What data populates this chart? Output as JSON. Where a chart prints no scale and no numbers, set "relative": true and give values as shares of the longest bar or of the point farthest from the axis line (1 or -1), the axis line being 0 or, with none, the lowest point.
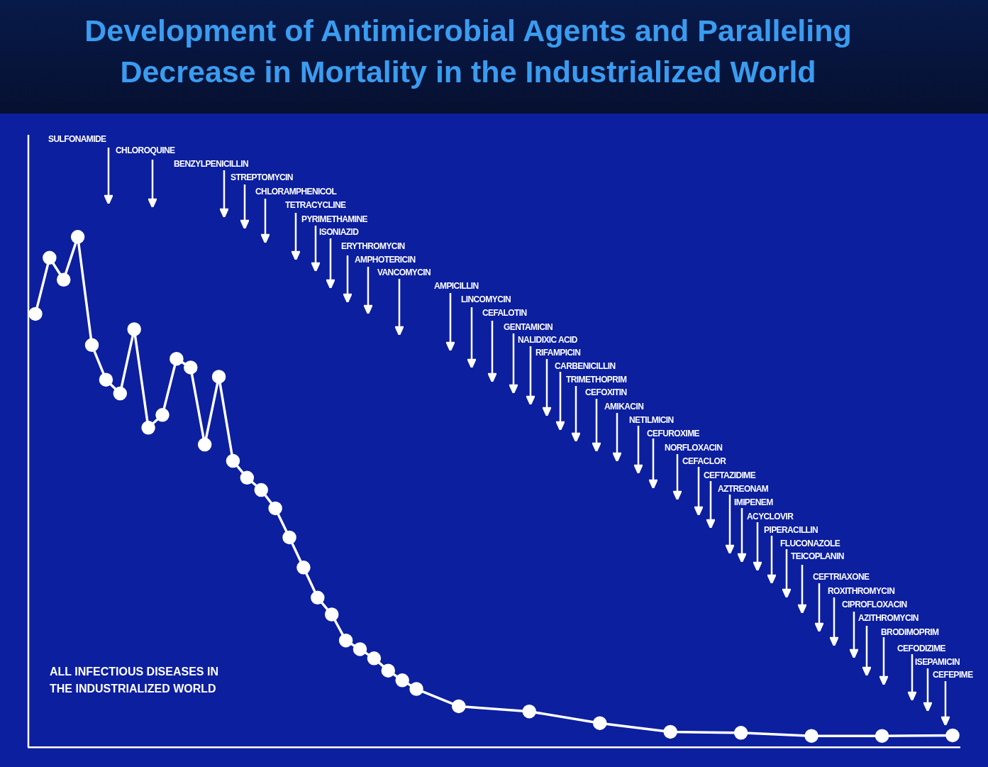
{
  "chart_data": {
    "type": "line",
    "title": "Development of Antimicrobial Agents and Paralleling Decrease in Mortality in the Industrialized World",
    "relative": true,
    "tick_labels": false,
    "grid": false,
    "legend": false,
    "marker": "circle",
    "line_style": "solid",
    "categories": [
      null,
      null,
      null,
      null,
      null,
      null,
      null,
      null,
      null,
      null,
      null,
      null,
      null,
      null,
      null,
      null,
      null,
      null,
      null,
      null,
      null,
      null,
      null,
      null,
      null,
      null,
      null,
      null,
      null,
      null,
      null,
      null,
      null,
      null,
      null,
      null,
      null,
      null,
      null,
      null,
      null,
      null,
      null,
      null,
      null,
      null,
      null,
      null,
      null,
      null,
      null,
      null,
      null,
      null,
      null,
      null,
      null,
      null,
      null,
      null,
      null,
      null,
      null,
      null,
      null,
      null
    ],
    "series": [
      {
        "name": "ALL INFECTIOUS DISEASES IN THE INDUSTRIALIZED WORLD",
        "color": "#ffffff",
        "values": [
          0.849,
          0.959,
          0.916,
          1.0,
          0.788,
          0.72,
          0.693,
          0.819,
          0.626,
          0.651,
          0.761,
          0.744,
          0.593,
          0.726,
          0.561,
          0.528,
          0.504,
          0.468,
          0.411,
          0.352,
          0.293,
          0.26,
          0.209,
          0.192,
          0.174,
          0.15,
          0.131,
          0.114,
          null,
          null,
          0.08,
          null,
          null,
          null,
          null,
          0.07,
          null,
          null,
          null,
          null,
          0.047,
          null,
          null,
          null,
          null,
          0.03,
          null,
          null,
          null,
          null,
          0.028,
          null,
          null,
          null,
          null,
          0.022,
          null,
          null,
          null,
          null,
          0.022,
          null,
          null,
          null,
          null,
          0.023
        ]
      }
    ],
    "annotations": [
      "SULFONAMIDE",
      "CHLOROQUINE",
      "BENZYLPENICILLIN",
      "STREPTOMYCIN",
      "CHLORAMPHENICOL",
      "TETRACYCLINE",
      "PYRIMETHAMINE",
      "ISONIAZID",
      "ERYTHROMYCIN",
      "AMPHOTERICIN",
      "VANCOMYCIN",
      "AMPICILLIN",
      "LINCOMYCIN",
      "CEFALOTIN",
      "GENTAMICIN",
      "NALIDIXIC ACID",
      "RIFAMPICIN",
      "CARBENICILLIN",
      "TRIMETHOPRIM",
      "CEFOXITIN",
      "AMIKACIN",
      "NETILMICIN",
      "CEFUROXIME",
      "NORFLOXACIN",
      "CEFACLOR",
      "CEFTAZIDIME",
      "AZTREONAM",
      "IMIPENEM",
      "ACYCLOVIR",
      "PIPERACILLIN",
      "FLUCONAZOLE",
      "TEICOPLANIN",
      "CEFTRIAXONE",
      "ROXITHROMYCIN",
      "CIPROFLOXACIN",
      "AZITHROMYCIN",
      "BRODIMOPRIM",
      "CEFODIZIME",
      "ISEPAMICIN",
      "CEFEPIME"
    ]
  }
}
